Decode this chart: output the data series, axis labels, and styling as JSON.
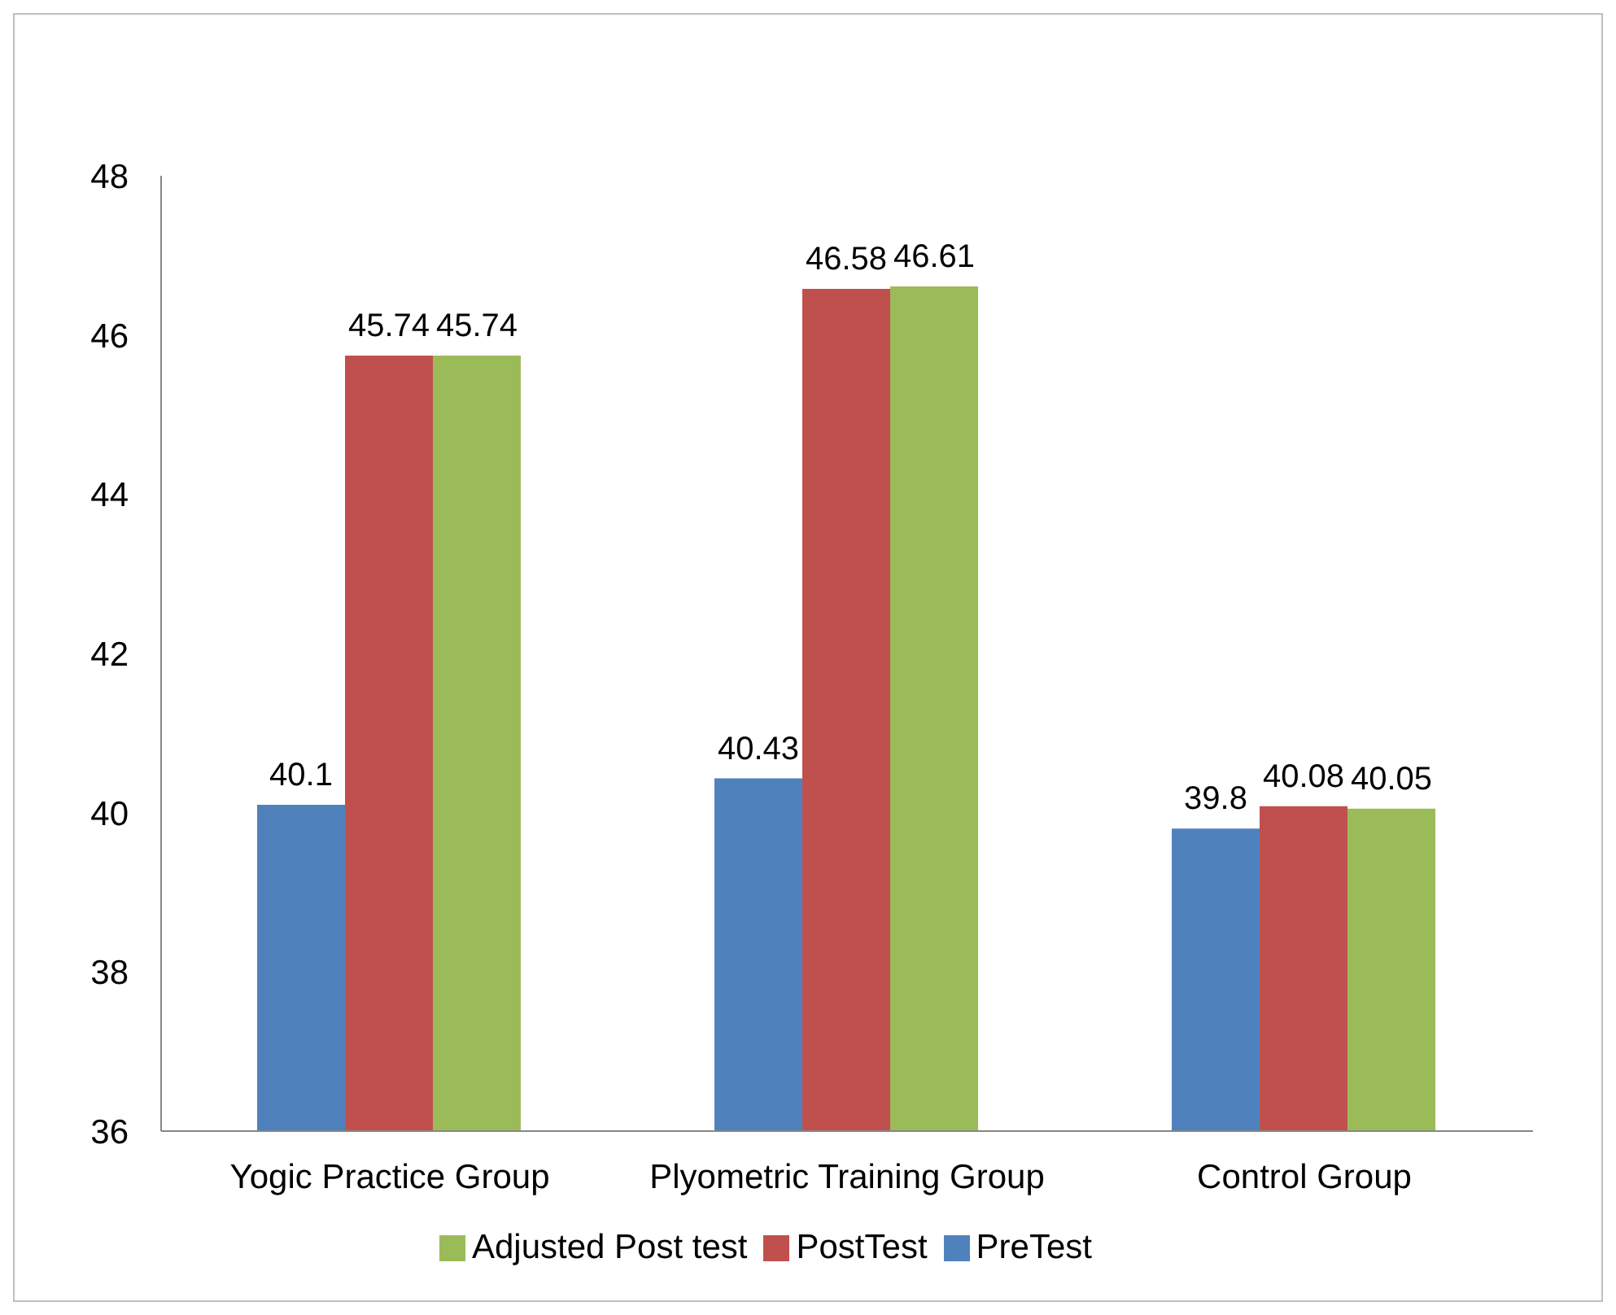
{
  "chart_data": {
    "type": "bar",
    "categories": [
      "Yogic Practice Group",
      "Plyometric Training Group",
      "Control Group"
    ],
    "series": [
      {
        "name": "PreTest",
        "color": "#4f81bd",
        "values": [
          40.1,
          40.43,
          39.8
        ]
      },
      {
        "name": "PostTest",
        "color": "#c0504d",
        "values": [
          45.74,
          46.58,
          40.08
        ]
      },
      {
        "name": "Adjusted Post test",
        "color": "#9bbb59",
        "values": [
          45.74,
          46.61,
          40.05
        ]
      }
    ],
    "ylim": [
      36,
      48
    ],
    "yticks": [
      36,
      38,
      40,
      42,
      44,
      46,
      48
    ],
    "data_labels": true,
    "legend": "bottom"
  }
}
